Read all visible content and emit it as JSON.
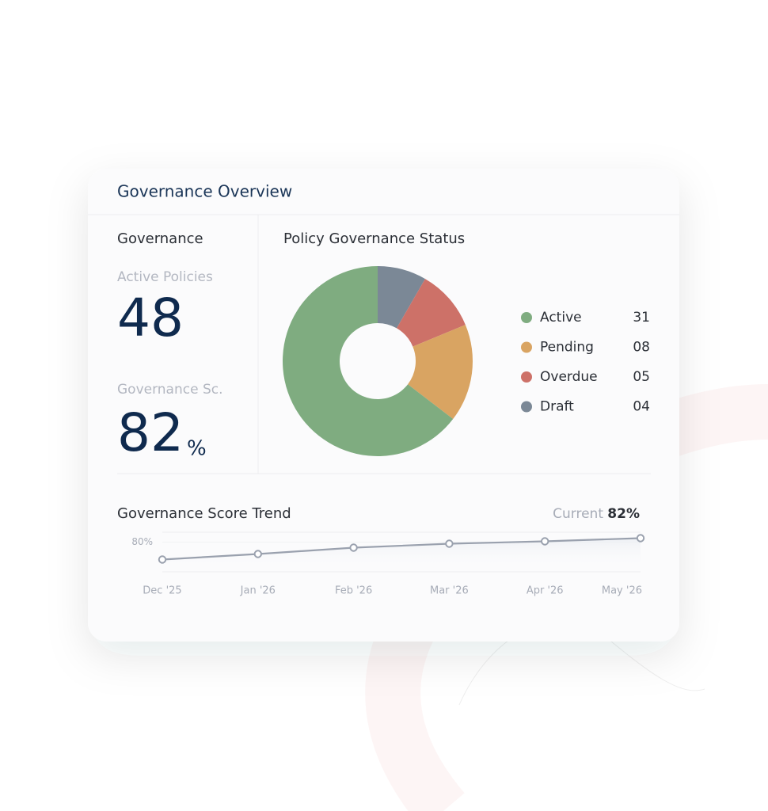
{
  "header": {
    "title": "Governance Overview"
  },
  "summary": {
    "title": "Governance",
    "kpis": [
      {
        "label": "Active Policies",
        "value": 48
      },
      {
        "label": "Governance Sc.",
        "value": 82,
        "unit": "%"
      }
    ]
  },
  "chart_data": [
    {
      "type": "donut",
      "title": "Policy Governance Status",
      "categories": [
        "Active",
        "Pending",
        "Overdue",
        "Draft"
      ],
      "values": [
        31,
        8,
        5,
        4
      ],
      "value_labels": [
        "31",
        "08",
        "05",
        "04"
      ],
      "colors": [
        "#7fac80",
        "#d9a462",
        "#cd7168",
        "#7b8896"
      ]
    },
    {
      "type": "line",
      "title": "Governance Score Trend",
      "current_label": "Current",
      "current_value": "82%",
      "x": [
        "Dec '25",
        "Jan '26",
        "Feb '26",
        "Mar '26",
        "Apr '26",
        "May '26"
      ],
      "series": [
        {
          "color": "#9aa1ae",
          "values": [
            71.2,
            74,
            77.2,
            79.2,
            80.4,
            82
          ]
        }
      ],
      "ylim": [
        65,
        85
      ],
      "yticks": [
        {
          "value": 80,
          "label": "80%"
        }
      ]
    }
  ]
}
